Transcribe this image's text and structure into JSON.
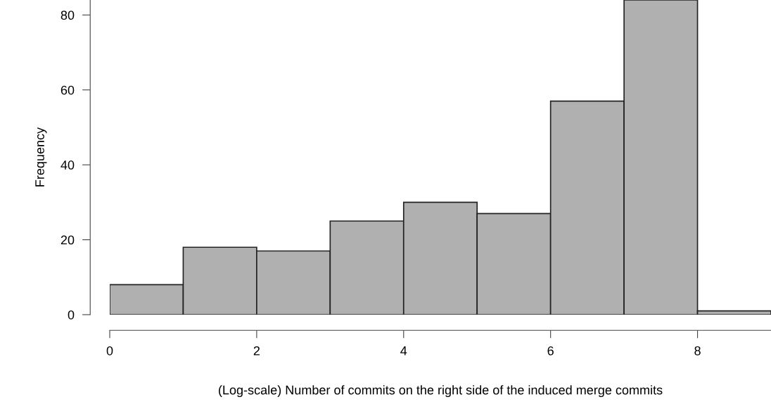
{
  "chart_data": {
    "type": "histogram",
    "xlabel": "(Log-scale) Number of commits on the right side of the induced merge commits",
    "ylabel": "Frequency",
    "bins": [
      0,
      1,
      2,
      3,
      4,
      5,
      6,
      7,
      8,
      9
    ],
    "values": [
      8,
      18,
      17,
      25,
      30,
      27,
      57,
      84,
      1
    ],
    "color": "#b0b0b0",
    "xlim": [
      0,
      9
    ],
    "ylim": [
      0,
      84
    ],
    "xticks": [
      0,
      2,
      4,
      6,
      8
    ],
    "yticks": [
      0,
      20,
      40,
      60,
      80
    ],
    "grid": false
  }
}
